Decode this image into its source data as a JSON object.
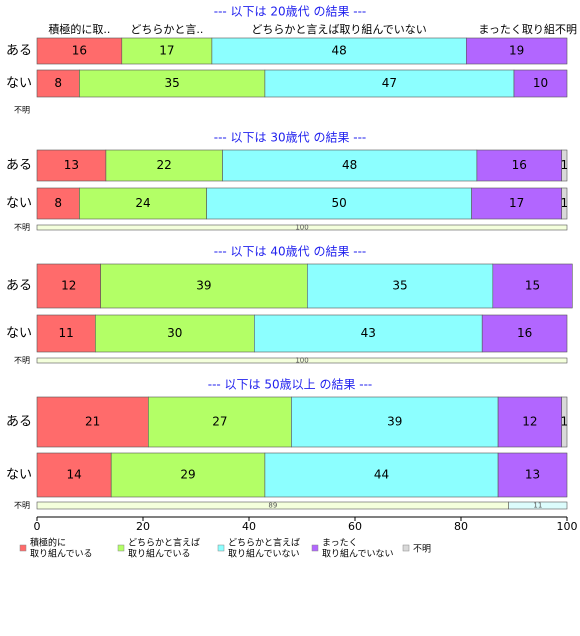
{
  "chart_data": {
    "type": "bar",
    "orientation": "horizontal",
    "stacked": true,
    "series": [
      {
        "name": [
          "積極的に",
          "取り組んでいる"
        ],
        "color": "#ff6b6b",
        "pale_color": "#ffe6e6"
      },
      {
        "name": [
          "どちらかと言えば",
          "取り組んでいる"
        ],
        "color": "#b3ff66",
        "pale_color": "#f4ffdc"
      },
      {
        "name": [
          "どちらかと言えば",
          "取り組んでいない"
        ],
        "color": "#8cffff",
        "pale_color": "#dcfcfc"
      },
      {
        "name": [
          "まったく",
          "取り組んでいない"
        ],
        "color": "#b266ff",
        "pale_color": "#eedcff"
      },
      {
        "name": [
          "不明"
        ],
        "color": "#d9d9d9",
        "pale_color": "#f2f2f2"
      }
    ],
    "column_headers": [
      "積極的に取..",
      "どちらかと言..",
      "どちらかと言えば取り組んでいない",
      "まったく取り組",
      "不明"
    ],
    "xlim": [
      0,
      100
    ],
    "xticks": [
      0,
      20,
      40,
      60,
      80,
      100
    ],
    "panels": [
      {
        "title": "--- 以下は 20歳代 の結果 ---",
        "rows": [
          {
            "label": "ある",
            "values": [
              16,
              17,
              48,
              19,
              null
            ]
          },
          {
            "label": "ない",
            "values": [
              8,
              35,
              47,
              10,
              null
            ]
          },
          {
            "label": "不明",
            "values": [
              null,
              null,
              null,
              null,
              null
            ]
          }
        ]
      },
      {
        "title": "--- 以下は 30歳代 の結果 ---",
        "rows": [
          {
            "label": "ある",
            "values": [
              13,
              22,
              48,
              16,
              1
            ]
          },
          {
            "label": "ない",
            "values": [
              8,
              24,
              50,
              17,
              1
            ]
          },
          {
            "label": "不明",
            "values": [
              null,
              100,
              null,
              null,
              null
            ]
          }
        ]
      },
      {
        "title": "--- 以下は 40歳代 の結果 ---",
        "rows": [
          {
            "label": "ある",
            "values": [
              12,
              39,
              35,
              15,
              null
            ]
          },
          {
            "label": "ない",
            "values": [
              11,
              30,
              43,
              16,
              null
            ]
          },
          {
            "label": "不明",
            "values": [
              null,
              100,
              null,
              null,
              null
            ]
          }
        ]
      },
      {
        "title": "--- 以下は 50歳以上 の結果 ---",
        "rows": [
          {
            "label": "ある",
            "values": [
              21,
              27,
              39,
              12,
              1
            ]
          },
          {
            "label": "ない",
            "values": [
              14,
              29,
              44,
              13,
              null
            ]
          },
          {
            "label": "不明",
            "values": [
              null,
              89,
              11,
              null,
              null
            ]
          }
        ]
      }
    ]
  }
}
